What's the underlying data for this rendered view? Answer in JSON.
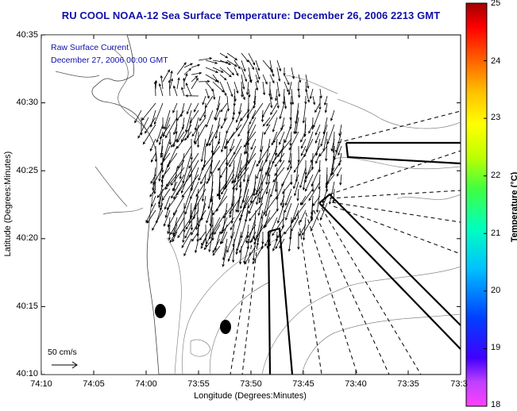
{
  "title": "RU COOL  NOAA-12  Sea Surface Temperature:  December 26, 2006 2213 GMT",
  "overlay": {
    "line1": "Raw Surface Current",
    "line2": "December 27, 2006 00:00 GMT"
  },
  "scale_label": "50 cm/s",
  "axes": {
    "xlabel": "Longitude (Degrees:Minutes)",
    "ylabel": "Latitude (Degrees:Minutes)",
    "xticks": [
      "74:10",
      "74:05",
      "74:00",
      "73:55",
      "73:50",
      "73:45",
      "73:40",
      "73:35",
      "73:3"
    ],
    "yticks": [
      "40:35",
      "40:30",
      "40:25",
      "40:20",
      "40:15",
      "40:10"
    ]
  },
  "colorbar": {
    "label": "Temperature (°C)",
    "ticks": [
      "25",
      "24",
      "23",
      "22",
      "21",
      "20",
      "19",
      "18"
    ],
    "range": [
      18,
      25
    ],
    "colors": [
      "#ff40ff",
      "#8000c0",
      "#0000ff",
      "#0080ff",
      "#00ffff",
      "#00ff80",
      "#40ff00",
      "#c0ff00",
      "#ffff00",
      "#ffc000",
      "#ff8000",
      "#ff2000",
      "#a00000"
    ]
  },
  "colors": {
    "title_text": "#1010a8",
    "contour": "#888888",
    "coast": "#444444"
  }
}
